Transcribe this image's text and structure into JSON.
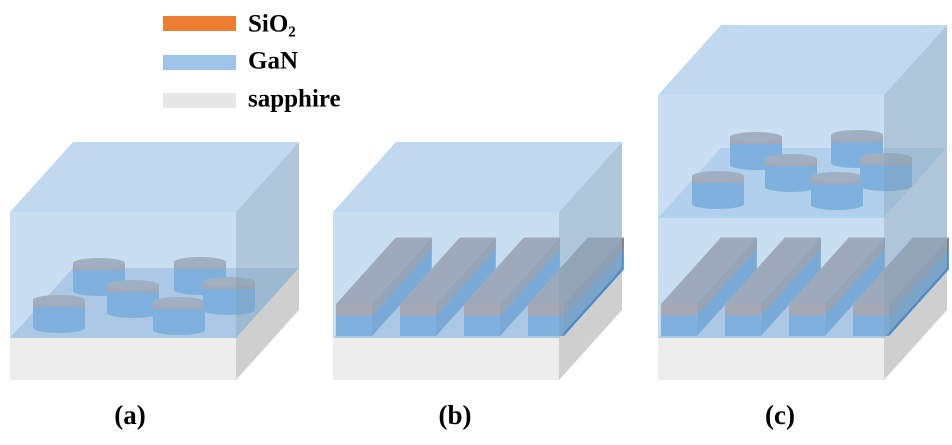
{
  "legend": [
    {
      "label": "SiO₂"
    },
    {
      "label": "GaN"
    },
    {
      "label": "sapphire"
    }
  ],
  "panels": [
    {
      "label": "(a)"
    },
    {
      "label": "(b)"
    },
    {
      "label": "(c)"
    }
  ]
}
